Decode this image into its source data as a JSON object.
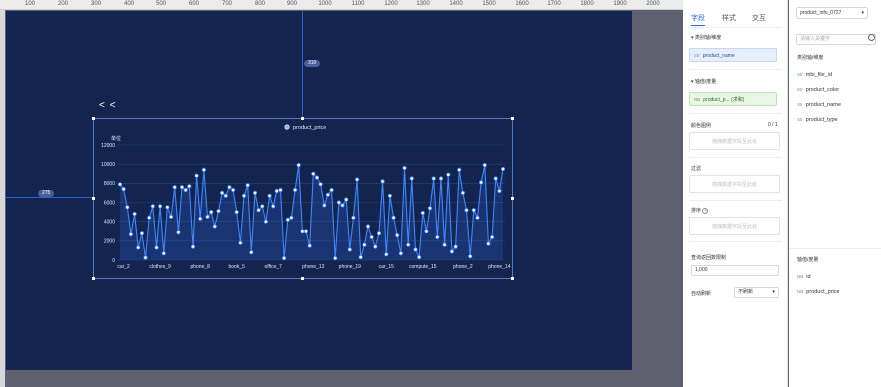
{
  "ruler": {
    "ticks": [
      "100",
      "200",
      "300",
      "400",
      "500",
      "600",
      "700",
      "800",
      "900",
      "1000",
      "1100",
      "1200",
      "1300",
      "1400",
      "1500",
      "1600",
      "1700",
      "1800",
      "1900",
      "2000"
    ]
  },
  "canvas": {
    "guide_top_label": "310",
    "guide_left_label": "275",
    "back_label": "< <"
  },
  "chart_data": {
    "type": "line",
    "legend_position": "top-center",
    "ylabel": "单位",
    "ylim": [
      0,
      12000
    ],
    "y_ticks": [
      "0",
      "2000",
      "4000",
      "6000",
      "8000",
      "10000",
      "12000"
    ],
    "x_tick_labels": [
      "car_2",
      "clothes_9",
      "phone_8",
      "book_5",
      "office_7",
      "phone_13",
      "phone_19",
      "car_15",
      "compute_15",
      "phone_2",
      "phone_14"
    ],
    "series": [
      {
        "name": "product_price",
        "values": [
          7900,
          7400,
          5500,
          2700,
          4800,
          1300,
          2800,
          250,
          4400,
          5600,
          1300,
          5600,
          700,
          5500,
          4500,
          7600,
          2900,
          7600,
          7300,
          7700,
          1400,
          8800,
          4300,
          9400,
          4500,
          5000,
          3500,
          5100,
          7000,
          6700,
          7600,
          7300,
          5000,
          1800,
          6700,
          7800,
          800,
          7000,
          5200,
          5600,
          4000,
          6700,
          5600,
          7200,
          7300,
          200,
          4200,
          4400,
          7300,
          9900,
          3000,
          3000,
          1500,
          9000,
          8600,
          7900,
          5700,
          6800,
          7300,
          200,
          6000,
          5700,
          6300,
          1100,
          4400,
          8400,
          300,
          1600,
          3500,
          2400,
          1400,
          2800,
          8200,
          600,
          6700,
          4400,
          2600,
          700,
          9600,
          1600,
          8500,
          1100,
          300,
          4900,
          3000,
          5400,
          8500,
          2400,
          8500,
          1600,
          8900,
          900,
          1400,
          9400,
          7000,
          5200,
          400,
          5200,
          4400,
          8100,
          9900,
          1700,
          2400,
          8500,
          7200,
          9500
        ]
      }
    ]
  },
  "panel": {
    "tabs": [
      "字段",
      "样式",
      "交互"
    ],
    "dimension_label": "类别轴/维度",
    "dimension_field": {
      "tag": "Str",
      "name": "product_name"
    },
    "measure_label": "轴值/度量",
    "measure_field": {
      "tag": "NB",
      "name": "product_p... (求和)"
    },
    "color_legend_label": "颜色图例",
    "color_legend_count": "0 / 1",
    "drop_hint": "拖拽数据字段至此处",
    "filter_label": "过滤",
    "sort_label": "排序",
    "sort_help_icon": "help-circle-icon",
    "limit_label": "查询返回数限制",
    "limit_value": "1,000",
    "refresh_label": "自动刷新",
    "refresh_value": "不刷新"
  },
  "datasource": {
    "dataset": "product_info_0727",
    "search_placeholder": "请输入关键字",
    "dimension_header": "类别轴/维度",
    "dimensions": [
      {
        "tag": "Str",
        "name": "mbi_file_id"
      },
      {
        "tag": "Str",
        "name": "product_color"
      },
      {
        "tag": "Str",
        "name": "product_name"
      },
      {
        "tag": "Str",
        "name": "product_type"
      }
    ],
    "measure_header": "轴值/度量",
    "measures": [
      {
        "tag": "NB",
        "name": "id"
      },
      {
        "tag": "NB",
        "name": "product_price"
      }
    ]
  }
}
